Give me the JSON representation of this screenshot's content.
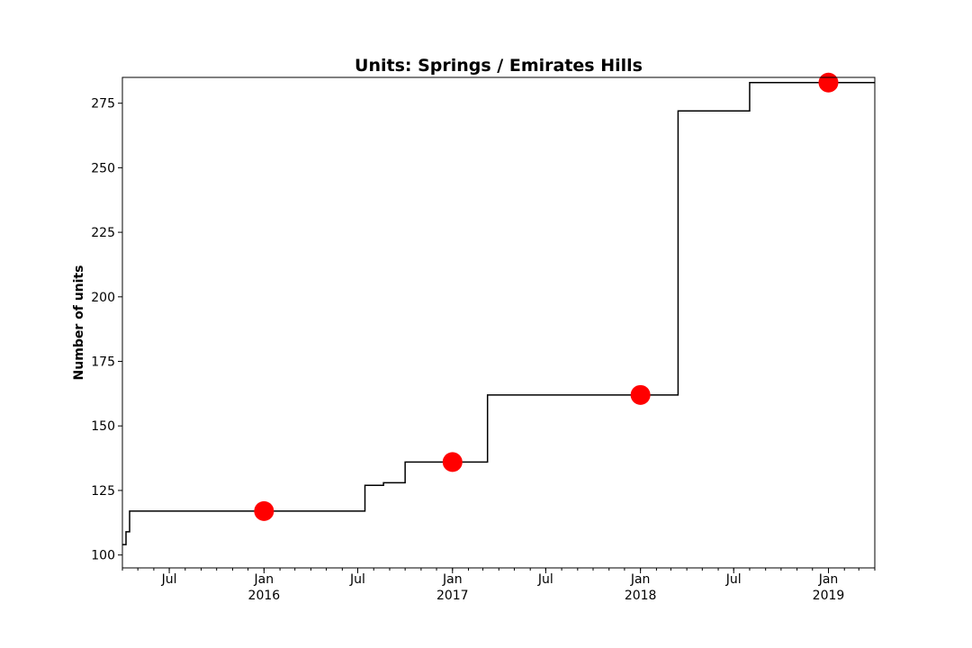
{
  "chart_data": {
    "type": "line",
    "title": "Units: Springs / Emirates Hills",
    "xlabel": "",
    "ylabel": "Number of units",
    "xlim": [
      "2015-04-01",
      "2019-04-01"
    ],
    "ylim": [
      95,
      285
    ],
    "yticks": [
      100,
      125,
      150,
      175,
      200,
      225,
      250,
      275
    ],
    "xticks_major": [
      {
        "date": "2015-07-01",
        "label": "Jul",
        "year": ""
      },
      {
        "date": "2016-01-01",
        "label": "Jan",
        "year": "2016"
      },
      {
        "date": "2016-07-01",
        "label": "Jul",
        "year": ""
      },
      {
        "date": "2017-01-01",
        "label": "Jan",
        "year": "2017"
      },
      {
        "date": "2017-07-01",
        "label": "Jul",
        "year": ""
      },
      {
        "date": "2018-01-01",
        "label": "Jan",
        "year": "2018"
      },
      {
        "date": "2018-07-01",
        "label": "Jul",
        "year": ""
      },
      {
        "date": "2019-01-01",
        "label": "Jan",
        "year": "2019"
      }
    ],
    "grid": false,
    "series": [
      {
        "style": "step",
        "color": "#000000",
        "x": [
          "2015-04-01",
          "2015-04-08",
          "2015-04-15",
          "2016-07-15",
          "2016-08-20",
          "2016-10-01",
          "2016-11-01",
          "2017-03-10",
          "2018-03-15",
          "2018-08-01",
          "2019-04-01"
        ],
        "y": [
          104,
          109,
          117,
          127,
          128,
          136,
          136,
          162,
          272,
          283,
          283
        ]
      },
      {
        "style": "markers",
        "color": "#ff0000",
        "x": [
          "2016-01-01",
          "2017-01-01",
          "2018-01-01",
          "2019-01-01"
        ],
        "y": [
          117,
          136,
          162,
          283
        ]
      }
    ]
  }
}
